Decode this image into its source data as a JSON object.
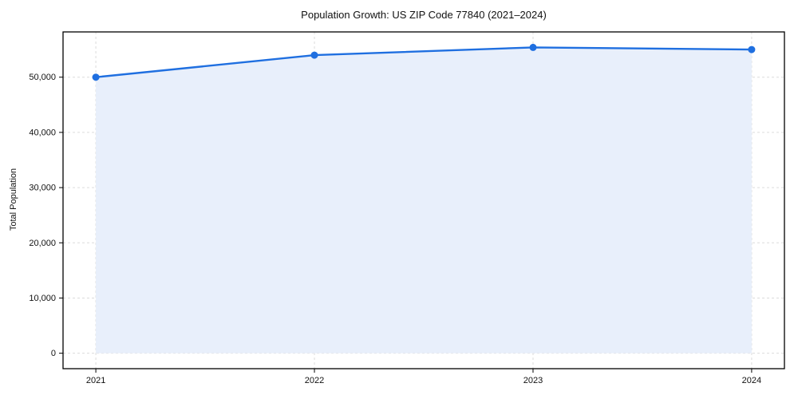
{
  "figure": {
    "title": "Population Growth: US ZIP Code 77840 (2021–2024)"
  },
  "chart_data": {
    "type": "area",
    "title": "Population Growth: US ZIP Code 77840 (2021–2024)",
    "xlabel": "",
    "ylabel": "Total Population",
    "x": [
      2021,
      2022,
      2023,
      2024
    ],
    "categories": [
      "2021",
      "2022",
      "2023",
      "2024"
    ],
    "series": [
      {
        "name": "Total Population",
        "values": [
          50000,
          54000,
          55400,
          55000
        ]
      }
    ],
    "xticks": [
      2021,
      2022,
      2023,
      2024
    ],
    "xtick_labels": [
      "2021",
      "2022",
      "2023",
      "2024"
    ],
    "yticks": [
      0,
      10000,
      20000,
      30000,
      40000,
      50000
    ],
    "ytick_labels": [
      "0",
      "10,000",
      "20,000",
      "30,000",
      "40,000",
      "50,000"
    ],
    "xlim": [
      2020.85,
      2024.15
    ],
    "ylim": [
      -2800,
      58200
    ],
    "grid": true,
    "grid_style": "dashed",
    "legend": "none",
    "baseline": 0,
    "colors": {
      "line": "#1f6fe0",
      "marker": "#1f6fe0",
      "fill": "#e8effb",
      "grid": "#dcdcdc",
      "spine": "#000000",
      "tick": "#000000",
      "text": "#111111",
      "background": "#ffffff"
    }
  }
}
